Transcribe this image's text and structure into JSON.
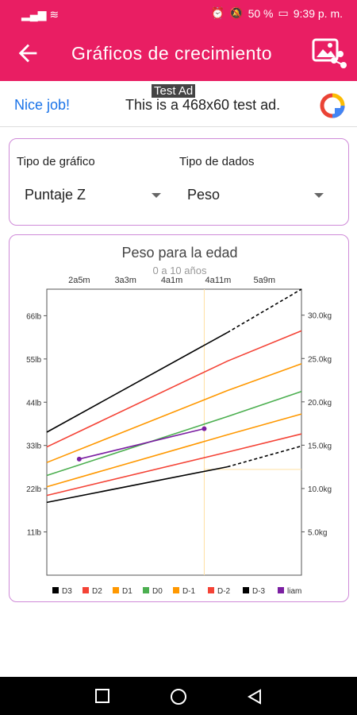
{
  "status_bar": {
    "battery": "50 %",
    "time": "9:39 p. m."
  },
  "app_bar": {
    "title": "Gráficos de crecimiento"
  },
  "ad": {
    "label": "Test Ad",
    "nice": "Nice job!",
    "text": "This is a 468x60 test ad."
  },
  "selectors": {
    "chart_type_label": "Tipo de gráfico",
    "chart_type_value": "Puntaje Z",
    "data_type_label": "Tipo de dados",
    "data_type_value": "Peso"
  },
  "colors": {
    "primary": "#e91e63",
    "card_border": "#cf8ad8"
  },
  "chart_data": {
    "type": "line",
    "title": "Peso para la edad",
    "subtitle": "0 a 10 años",
    "x_top_ticks": [
      "2a5m",
      "3a3m",
      "4a1m",
      "4a11m",
      "5a9m"
    ],
    "y_left_ticks": [
      "66lb",
      "55lb",
      "44lb",
      "33lb",
      "22lb",
      "11lb"
    ],
    "y_right_ticks": [
      "30.0kg",
      "25.0kg",
      "20.0kg",
      "15.0kg",
      "10.0kg",
      "5.0kg"
    ],
    "x_unit_months": true,
    "xlim": [
      22,
      77
    ],
    "ylim_kg": [
      0,
      33
    ],
    "series": [
      {
        "name": "D3",
        "color": "#000000",
        "x": [
          22,
          61,
          77
        ],
        "y": [
          16.5,
          28.0,
          33.0
        ],
        "dashed_after": 62
      },
      {
        "name": "D2",
        "color": "#f44336",
        "x": [
          22,
          61,
          77
        ],
        "y": [
          14.8,
          24.7,
          28.2
        ]
      },
      {
        "name": "D1",
        "color": "#ff9800",
        "x": [
          22,
          61,
          77
        ],
        "y": [
          13.0,
          21.3,
          24.4
        ]
      },
      {
        "name": "D0",
        "color": "#4caf50",
        "x": [
          22,
          61,
          77
        ],
        "y": [
          11.5,
          18.3,
          21.2
        ]
      },
      {
        "name": "D-1",
        "color": "#ff9800",
        "x": [
          22,
          61,
          77
        ],
        "y": [
          10.2,
          16.2,
          18.6
        ]
      },
      {
        "name": "D-2",
        "color": "#f44336",
        "x": [
          22,
          61,
          77
        ],
        "y": [
          9.2,
          14.2,
          16.3
        ]
      },
      {
        "name": "D-3",
        "color": "#000000",
        "x": [
          22,
          61,
          77
        ],
        "y": [
          8.4,
          12.5,
          14.9
        ],
        "dashed_after": 62
      },
      {
        "name": "liam",
        "color": "#7b1fa2",
        "x": [
          29,
          56
        ],
        "y": [
          13.4,
          16.9
        ],
        "points": true
      }
    ],
    "crosshair": {
      "x": 56,
      "y_kg": 12.2
    }
  }
}
